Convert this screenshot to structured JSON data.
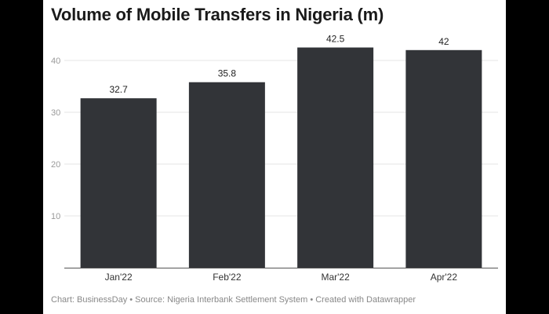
{
  "chart_data": {
    "type": "bar",
    "title": "Volume of Mobile Transfers in Nigeria (m)",
    "categories": [
      "Jan'22",
      "Feb'22",
      "Mar'22",
      "Apr'22"
    ],
    "values": [
      32.7,
      35.8,
      42.5,
      42
    ],
    "value_labels": [
      "32.7",
      "35.8",
      "42.5",
      "42"
    ],
    "ylim": [
      0,
      45
    ],
    "yticks": [
      10,
      20,
      30,
      40
    ],
    "grid": true,
    "bar_color": "#323438",
    "footer": "Chart: BusinessDay • Source: Nigeria Interbank Settlement System • Created with Datawrapper"
  }
}
